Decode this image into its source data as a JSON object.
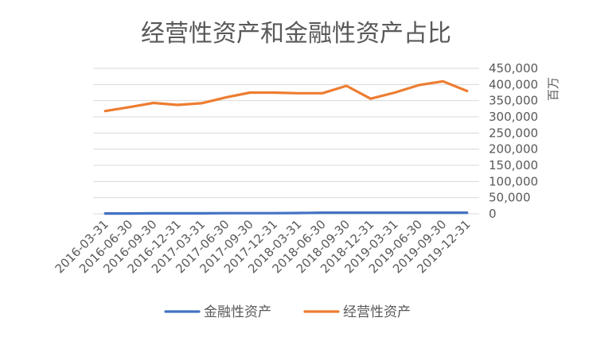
{
  "chart_data": {
    "type": "line",
    "title": "经营性资产和金融性资产占比",
    "ylabel": "百万",
    "axis_position": "right",
    "ylim": [
      0,
      450000
    ],
    "yticks": [
      0,
      50000,
      100000,
      150000,
      200000,
      250000,
      300000,
      350000,
      400000,
      450000
    ],
    "ytick_labels": [
      "0",
      "50,000",
      "100,000",
      "150,000",
      "200,000",
      "250,000",
      "300,000",
      "350,000",
      "400,000",
      "450,000"
    ],
    "grid": true,
    "legend_position": "bottom",
    "categories": [
      "2016-03-31",
      "2016-06-30",
      "2016-09-30",
      "2016-12-31",
      "2017-03-31",
      "2017-06-30",
      "2017-09-30",
      "2017-12-31",
      "2018-03-31",
      "2018-06-30",
      "2018-09-30",
      "2018-12-31",
      "2019-03-31",
      "2019-06-30",
      "2019-09-30",
      "2019-12-31"
    ],
    "series": [
      {
        "name": "金融性资产",
        "color": "#4472C4",
        "values": [
          1000,
          1000,
          1500,
          1500,
          1500,
          2000,
          2000,
          2000,
          2500,
          3500,
          3500,
          3500,
          3500,
          3500,
          3500,
          3500
        ]
      },
      {
        "name": "经营性资产",
        "color": "#ED7D31",
        "values": [
          318000,
          330000,
          343000,
          337000,
          342000,
          360000,
          375000,
          375000,
          373000,
          373000,
          396000,
          356000,
          375000,
          398000,
          410000,
          380000
        ]
      }
    ]
  }
}
